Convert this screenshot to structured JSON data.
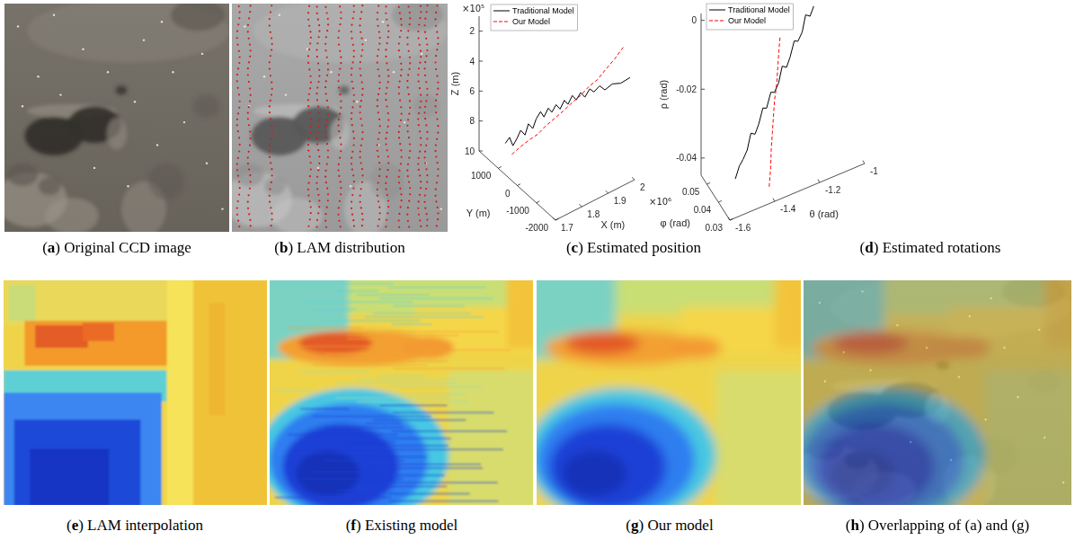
{
  "panels": [
    {
      "label": "(a)",
      "caption": "Original CCD image"
    },
    {
      "label": "(b)",
      "caption": "LAM distribution"
    },
    {
      "label": "(c)",
      "caption": "Estimated position"
    },
    {
      "label": "(d)",
      "caption": "Estimated rotations"
    },
    {
      "label": "(e)",
      "caption": "LAM interpolation"
    },
    {
      "label": "(f)",
      "caption": "Existing model"
    },
    {
      "label": "(g)",
      "caption": "Our model"
    },
    {
      "label": "(h)",
      "caption": "Overlapping of (a) and (g)"
    }
  ],
  "chart_data": [
    {
      "type": "line3d",
      "xlabel": "X (m)",
      "ylabel": "Y (m)",
      "zlabel": "Z (m)",
      "x_exponent_label": "×10⁶",
      "z_exponent_label": "×10⁵",
      "xlim": [
        1.7,
        2
      ],
      "xticks": [
        1.7,
        1.8,
        1.9,
        2
      ],
      "ylim": [
        -2000,
        2000
      ],
      "yticks": [
        -2000,
        -1000,
        0,
        1000
      ],
      "zlim": [
        10,
        1
      ],
      "zticks": [
        2,
        4,
        6,
        8,
        10
      ],
      "legend": "upper left",
      "series": [
        {
          "name": "Traditional Model",
          "color": "#000000",
          "line_style": "solid",
          "x": [
            1.72,
            1.73,
            1.74,
            1.75,
            1.76,
            1.77,
            1.78,
            1.79,
            1.8,
            1.81,
            1.82,
            1.83,
            1.84,
            1.85,
            1.86,
            1.87,
            1.88,
            1.89,
            1.9,
            1.91,
            1.92,
            1.93,
            1.94,
            1.95,
            1.96,
            1.97,
            1.98,
            1.99
          ],
          "y": [
            900,
            820,
            780,
            700,
            650,
            560,
            520,
            430,
            390,
            300,
            260,
            170,
            120,
            40,
            -30,
            -120,
            -170,
            -260,
            -330,
            -420,
            -500,
            -620,
            -700,
            -860,
            -1000,
            -1250,
            -1550,
            -1900
          ],
          "z": [
            8.4,
            8.0,
            8.6,
            8.1,
            7.6,
            7.9,
            7.2,
            7.5,
            6.9,
            6.4,
            6.8,
            6.2,
            6.5,
            6.0,
            6.3,
            5.7,
            6.0,
            5.4,
            5.7,
            5.2,
            5.5,
            4.9,
            5.1,
            4.6,
            4.8,
            4.2,
            3.9,
            3.2
          ]
        },
        {
          "name": "Our Model",
          "color": "#ff0000",
          "line_style": "dashed",
          "x": [
            1.73,
            1.75,
            1.77,
            1.79,
            1.81,
            1.83,
            1.85,
            1.87,
            1.89,
            1.91,
            1.93,
            1.95,
            1.97,
            1.99
          ],
          "y": [
            700,
            540,
            350,
            180,
            10,
            -160,
            -330,
            -520,
            -690,
            -850,
            -1030,
            -1190,
            -1370,
            -1540
          ],
          "z": [
            9.0,
            8.5,
            8.0,
            7.6,
            7.0,
            6.5,
            6.0,
            5.4,
            4.9,
            4.3,
            3.8,
            3.1,
            2.4,
            1.6
          ]
        }
      ]
    },
    {
      "type": "line3d",
      "xlabel": "θ (rad)",
      "ylabel": "φ (rad)",
      "zlabel": "ρ (rad)",
      "xlim": [
        -1.6,
        -1
      ],
      "xticks": [
        -1.6,
        -1.4,
        -1.2,
        -1
      ],
      "ylim": [
        0.03,
        0.055
      ],
      "yticks": [
        0.03,
        0.04,
        0.05
      ],
      "zlim": [
        -0.045,
        0.002
      ],
      "zticks": [
        -0.04,
        -0.02,
        0
      ],
      "legend": "upper left",
      "series": [
        {
          "name": "Traditional Model",
          "color": "#000000",
          "line_style": "solid",
          "x": [
            -1.15,
            -1.17,
            -1.19,
            -1.21,
            -1.23,
            -1.25,
            -1.27,
            -1.29,
            -1.31,
            -1.33,
            -1.35,
            -1.37,
            -1.39,
            -1.41,
            -1.43,
            -1.45,
            -1.47,
            -1.49,
            -1.51,
            -1.53,
            -1.55
          ],
          "y": [
            0.045,
            0.0443,
            0.0442,
            0.0433,
            0.0431,
            0.0424,
            0.0421,
            0.0413,
            0.0411,
            0.0404,
            0.0401,
            0.0393,
            0.0391,
            0.0384,
            0.0381,
            0.0374,
            0.0371,
            0.0364,
            0.0361,
            0.0354,
            0.035
          ],
          "z": [
            -0.003,
            -0.005,
            -0.004,
            -0.008,
            -0.01,
            -0.009,
            -0.013,
            -0.015,
            -0.014,
            -0.018,
            -0.02,
            -0.019,
            -0.023,
            -0.022,
            -0.026,
            -0.028,
            -0.027,
            -0.031,
            -0.033,
            -0.034,
            -0.037
          ]
        },
        {
          "name": "Our Model",
          "color": "#ff0000",
          "line_style": "dashed",
          "x": [
            -1.3,
            -1.31,
            -1.32,
            -1.33,
            -1.345,
            -1.355,
            -1.365,
            -1.375,
            -1.385,
            -1.4
          ],
          "y": [
            0.045,
            0.044,
            0.043,
            0.042,
            0.041,
            0.04,
            0.039,
            0.038,
            0.0365,
            0.035
          ],
          "z": [
            -0.008,
            -0.011,
            -0.015,
            -0.019,
            -0.023,
            -0.027,
            -0.031,
            -0.035,
            -0.039,
            -0.044
          ]
        }
      ]
    }
  ]
}
